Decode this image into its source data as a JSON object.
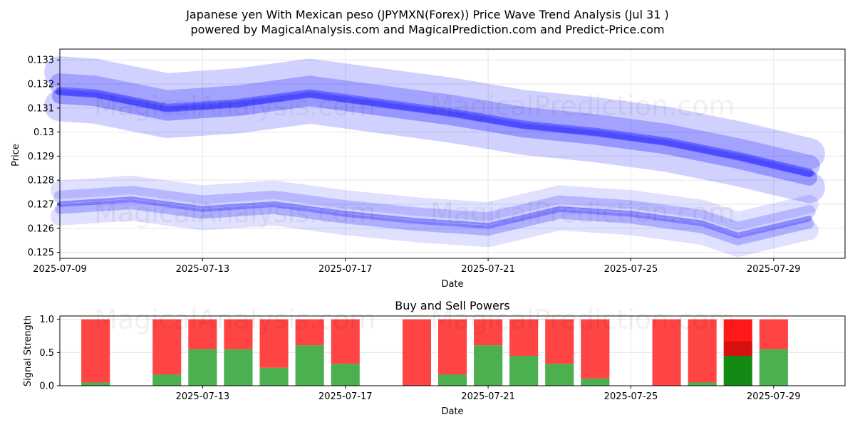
{
  "figure": {
    "title_line1": "Japanese yen With Mexican peso (JPYMXN(Forex)) Price Wave Trend Analysis (Jul 31 )",
    "title_line2": "powered by MagicalAnalysis.com and MagicalPrediction.com and Predict-Price.com",
    "watermarks": [
      "MagicalAnalysis.com",
      "MagicalPrediction.com"
    ]
  },
  "chart_data": [
    {
      "type": "area",
      "xlabel": "Date",
      "ylabel": "Price",
      "xlim": [
        "2025-07-09",
        "2025-07-31"
      ],
      "ylim": [
        0.12475,
        0.13345
      ],
      "x_ticks": [
        "2025-07-09",
        "2025-07-13",
        "2025-07-17",
        "2025-07-21",
        "2025-07-25",
        "2025-07-29"
      ],
      "y_ticks": [
        0.125,
        0.126,
        0.127,
        0.128,
        0.129,
        0.13,
        0.131,
        0.132,
        0.133
      ],
      "grid": true,
      "color": "#0000ff",
      "upper_wave": [
        {
          "date": "2025-07-09",
          "value": 0.1317
        },
        {
          "date": "2025-07-10",
          "value": 0.1316
        },
        {
          "date": "2025-07-12",
          "value": 0.131
        },
        {
          "date": "2025-07-14",
          "value": 0.1312
        },
        {
          "date": "2025-07-16",
          "value": 0.1316
        },
        {
          "date": "2025-07-18",
          "value": 0.1312
        },
        {
          "date": "2025-07-20",
          "value": 0.1308
        },
        {
          "date": "2025-07-22",
          "value": 0.1303
        },
        {
          "date": "2025-07-24",
          "value": 0.13
        },
        {
          "date": "2025-07-26",
          "value": 0.1296
        },
        {
          "date": "2025-07-28",
          "value": 0.129
        },
        {
          "date": "2025-07-30",
          "value": 0.1283
        }
      ],
      "lower_wave": [
        {
          "date": "2025-07-09",
          "value": 0.127
        },
        {
          "date": "2025-07-11",
          "value": 0.1272
        },
        {
          "date": "2025-07-13",
          "value": 0.1268
        },
        {
          "date": "2025-07-15",
          "value": 0.127
        },
        {
          "date": "2025-07-17",
          "value": 0.1266
        },
        {
          "date": "2025-07-19",
          "value": 0.1263
        },
        {
          "date": "2025-07-21",
          "value": 0.1261
        },
        {
          "date": "2025-07-23",
          "value": 0.1268
        },
        {
          "date": "2025-07-25",
          "value": 0.1266
        },
        {
          "date": "2025-07-27",
          "value": 0.1262
        },
        {
          "date": "2025-07-28",
          "value": 0.1257
        },
        {
          "date": "2025-07-30",
          "value": 0.1264
        }
      ]
    },
    {
      "type": "bar",
      "title": "Buy and Sell Powers",
      "xlabel": "Date",
      "ylabel": "Signal Strength",
      "xlim": [
        "2025-07-09",
        "2025-07-31"
      ],
      "ylim": [
        0,
        1.05
      ],
      "x_ticks": [
        "2025-07-13",
        "2025-07-17",
        "2025-07-21",
        "2025-07-25",
        "2025-07-29"
      ],
      "y_ticks": [
        "0.0",
        "0.5",
        "1.0"
      ],
      "grid": true,
      "buy_color": "#4caf50",
      "sell_color": "#ff4444",
      "series": [
        {
          "name": "buy",
          "categories": [
            "2025-07-10",
            "2025-07-12",
            "2025-07-13",
            "2025-07-14",
            "2025-07-15",
            "2025-07-16",
            "2025-07-17",
            "2025-07-19",
            "2025-07-20",
            "2025-07-21",
            "2025-07-22",
            "2025-07-23",
            "2025-07-24",
            "2025-07-26",
            "2025-07-27",
            "2025-07-28",
            "2025-07-29"
          ],
          "values": [
            0.05,
            0.17,
            0.55,
            0.55,
            0.27,
            0.61,
            0.33,
            0.0,
            0.17,
            0.61,
            0.45,
            0.33,
            0.11,
            0.0,
            0.05,
            0.45,
            0.55
          ]
        },
        {
          "name": "sell",
          "values": [
            0.95,
            0.83,
            0.45,
            0.45,
            0.73,
            0.39,
            0.67,
            1.0,
            0.83,
            0.39,
            0.55,
            0.67,
            0.89,
            1.0,
            0.95,
            0.55,
            0.45
          ]
        }
      ]
    }
  ]
}
